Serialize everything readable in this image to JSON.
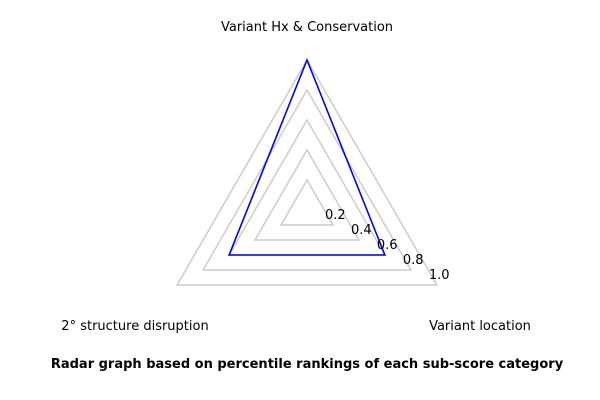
{
  "chart_data": {
    "type": "radar",
    "axes": [
      "Variant Hx & Conservation",
      "Variant location",
      "2° structure disruption"
    ],
    "rings": [
      0.2,
      0.4,
      0.6,
      0.8,
      1.0
    ],
    "tick_labels": [
      "0.2",
      "0.4",
      "0.6",
      "0.8",
      "1.0"
    ],
    "range": [
      0,
      1.0
    ],
    "series": [
      {
        "values": [
          1.0,
          0.6,
          0.6
        ]
      }
    ],
    "grid": true,
    "colors": {
      "series": "#0000ff",
      "grid": "#cccccc"
    }
  },
  "caption": "Radar graph based on percentile rankings of each sub-score category"
}
